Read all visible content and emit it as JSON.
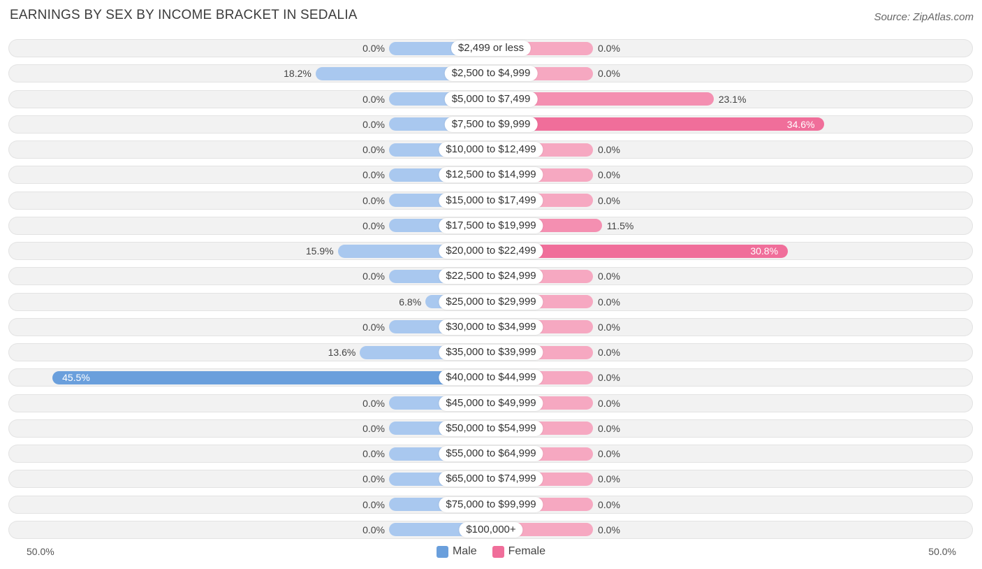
{
  "header": {
    "title": "EARNINGS BY SEX BY INCOME BRACKET IN SEDALIA",
    "source": "Source: ZipAtlas.com"
  },
  "colors": {
    "male_light": "#a9c8ef",
    "male_strong": "#6a9fdc",
    "female_light": "#f6a8c1",
    "female_strong": "#f06e9a"
  },
  "axis": {
    "left_label": "50.0%",
    "right_label": "50.0%"
  },
  "legend": {
    "male": "Male",
    "female": "Female"
  },
  "chart_data": {
    "type": "bar",
    "orientation": "horizontal-diverging",
    "title": "EARNINGS BY SEX BY INCOME BRACKET IN SEDALIA",
    "xlim": [
      -50,
      50
    ],
    "categories": [
      "$2,499 or less",
      "$2,500 to $4,999",
      "$5,000 to $7,499",
      "$7,500 to $9,999",
      "$10,000 to $12,499",
      "$12,500 to $14,999",
      "$15,000 to $17,499",
      "$17,500 to $19,999",
      "$20,000 to $22,499",
      "$22,500 to $24,999",
      "$25,000 to $29,999",
      "$30,000 to $34,999",
      "$35,000 to $39,999",
      "$40,000 to $44,999",
      "$45,000 to $49,999",
      "$50,000 to $54,999",
      "$55,000 to $64,999",
      "$65,000 to $74,999",
      "$75,000 to $99,999",
      "$100,000+"
    ],
    "series": [
      {
        "name": "Male",
        "values": [
          0.0,
          18.2,
          0.0,
          0.0,
          0.0,
          0.0,
          0.0,
          0.0,
          15.9,
          0.0,
          6.8,
          0.0,
          13.6,
          45.5,
          0.0,
          0.0,
          0.0,
          0.0,
          0.0,
          0.0
        ]
      },
      {
        "name": "Female",
        "values": [
          0.0,
          0.0,
          23.1,
          34.6,
          0.0,
          0.0,
          0.0,
          11.5,
          30.8,
          0.0,
          0.0,
          0.0,
          0.0,
          0.0,
          0.0,
          0.0,
          0.0,
          0.0,
          0.0,
          0.0
        ]
      }
    ],
    "value_labels": {
      "male": [
        "0.0%",
        "18.2%",
        "0.0%",
        "0.0%",
        "0.0%",
        "0.0%",
        "0.0%",
        "0.0%",
        "15.9%",
        "0.0%",
        "6.8%",
        "0.0%",
        "13.6%",
        "45.5%",
        "0.0%",
        "0.0%",
        "0.0%",
        "0.0%",
        "0.0%",
        "0.0%"
      ],
      "female": [
        "0.0%",
        "0.0%",
        "23.1%",
        "34.6%",
        "0.0%",
        "0.0%",
        "0.0%",
        "11.5%",
        "30.8%",
        "0.0%",
        "0.0%",
        "0.0%",
        "0.0%",
        "0.0%",
        "0.0%",
        "0.0%",
        "0.0%",
        "0.0%",
        "0.0%",
        "0.0%"
      ]
    }
  }
}
